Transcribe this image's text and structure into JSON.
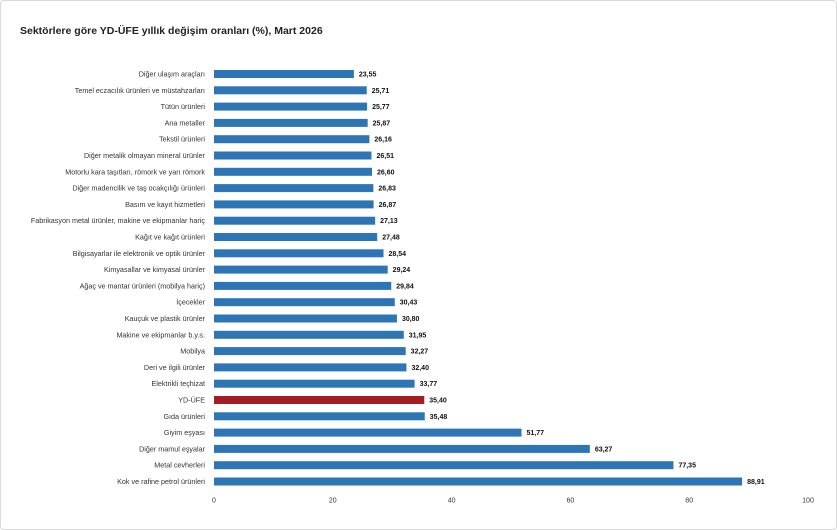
{
  "chart_data": {
    "type": "bar",
    "orientation": "horizontal",
    "title": "Sektörlere göre YD-ÜFE yıllık değişim oranları (%), Mart 2026",
    "categories": [
      "Diğer ulaşım araçları",
      "Temel eczacılık ürünleri ve müstahzarları",
      "Tütün ürünleri",
      "Ana metaller",
      "Tekstil ürünleri",
      "Diğer metalik olmayan mineral ürünler",
      "Motorlu kara taşıtları, römork ve yarı römork",
      "Diğer madencilik ve taş ocakçılığı ürünleri",
      "Basım ve kayıt hizmetleri",
      "Fabrikasyon metal ürünler, makine ve ekipmanlar hariç",
      "Kağıt ve kağıt ürünleri",
      "Bilgisayarlar ile elektronik ve optik ürünler",
      "Kimyasallar ve kimyasal ürünler",
      "Ağaç ve mantar ürünleri (mobilya hariç)",
      "İçecekler",
      "Kauçuk ve plastik ürünler",
      "Makine ve ekipmanlar b.y.s.",
      "Mobilya",
      "Deri ve ilgili ürünler",
      "Elektrikli teçhizat",
      "YD-ÜFE",
      "Gıda ürünleri",
      "Giyim eşyası",
      "Diğer mamul eşyalar",
      "Metal cevherleri",
      "Kok ve rafine petrol ürünleri"
    ],
    "values": [
      23.55,
      25.71,
      25.77,
      25.87,
      26.16,
      26.51,
      26.6,
      26.83,
      26.87,
      27.13,
      27.48,
      28.54,
      29.24,
      29.84,
      30.43,
      30.8,
      31.95,
      32.27,
      32.4,
      33.77,
      35.4,
      35.48,
      51.77,
      63.27,
      77.35,
      88.91
    ],
    "value_labels": [
      "23,55",
      "25,71",
      "25,77",
      "25,87",
      "26,16",
      "26,51",
      "26,60",
      "26,83",
      "26,87",
      "27,13",
      "27,48",
      "28,54",
      "29,24",
      "29,84",
      "30,43",
      "30,80",
      "31,95",
      "32,27",
      "32,40",
      "33,77",
      "35,40",
      "35,48",
      "51,77",
      "63,27",
      "77,35",
      "88,91"
    ],
    "highlight_category": "YD-ÜFE",
    "xlim": [
      0,
      100
    ],
    "xticks": [
      0,
      20,
      40,
      60,
      80,
      100
    ],
    "xlabel": "",
    "ylabel": "",
    "grid": false,
    "colors": {
      "bar": "#2e75b6",
      "highlight": "#a31e22"
    }
  }
}
